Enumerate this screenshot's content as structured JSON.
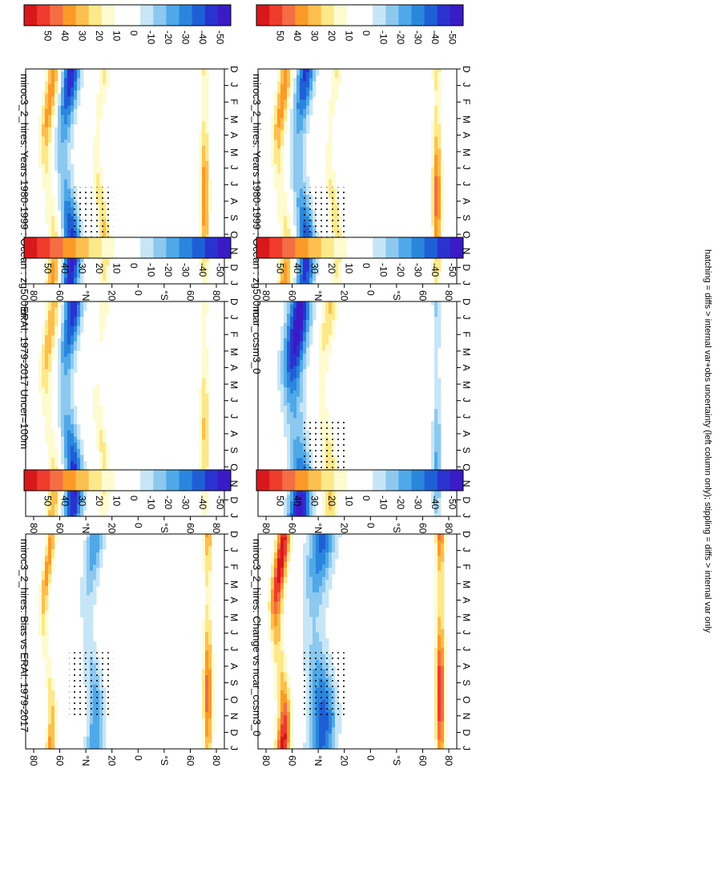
{
  "figure": {
    "footer": "hatching = diffs > internal var+obs uncertainty (left column only); stippling = diffs > internal var only"
  },
  "colorbar": {
    "labels": [
      "50",
      "40",
      "30",
      "20",
      "10",
      "0",
      "-10",
      "-20",
      "-30",
      "-40",
      "-50"
    ],
    "colors": [
      "#d7191c",
      "#ef3b2c",
      "#f46d43",
      "#fb9a29",
      "#fdbf4f",
      "#fde88a",
      "#fffbd0",
      "#ffffff",
      "#ffffff",
      "#c6e6f7",
      "#8dc8ef",
      "#4fa8e8",
      "#2a86dd",
      "#1f5fd6",
      "#2a32d0",
      "#3a1bc6"
    ]
  },
  "panel_common": {
    "lat_ticks": [
      "80",
      "60",
      "°N",
      "20",
      "0",
      "°S",
      "60",
      "80"
    ],
    "month_ticks": [
      "D",
      "J",
      "F",
      "M",
      "A",
      "M",
      "J",
      "J",
      "A",
      "S",
      "O",
      "N",
      "D",
      "J"
    ]
  },
  "chart_data": [
    {
      "type": "heatmap",
      "title": "miroc3_2_hires: Years 1980-1999 : Ocean : zg500 m",
      "x": [
        "D",
        "J",
        "F",
        "M",
        "A",
        "M",
        "J",
        "J",
        "A",
        "S",
        "O",
        "N",
        "D",
        "J"
      ],
      "y": [
        "80",
        "60",
        "°N",
        "20",
        "0",
        "°S",
        "60",
        "80"
      ],
      "zrange": [
        -50,
        50
      ],
      "features": [
        {
          "lat": 68,
          "amp": 30,
          "width": 6,
          "months": "D-J, Nov"
        },
        {
          "lat": 52,
          "amp": -45,
          "width": 8
        },
        {
          "lat": 22,
          "amp": 20,
          "width": 5
        },
        {
          "lat": -72,
          "amp": 30,
          "width": 4
        }
      ]
    },
    {
      "type": "heatmap",
      "title": "miroc3_2_hires: Years 1980-1999 : Ocean : zg500 m",
      "x": [
        "D",
        "J",
        "F",
        "M",
        "A",
        "M",
        "J",
        "J",
        "A",
        "S",
        "O",
        "N",
        "D",
        "J"
      ],
      "y": [
        "80",
        "60",
        "°N",
        "20",
        "0",
        "°S",
        "60",
        "80"
      ],
      "zrange": [
        -50,
        50
      ],
      "features": [
        {
          "lat": 68,
          "amp": 30,
          "width": 6
        },
        {
          "lat": 50,
          "amp": -40,
          "width": 8
        },
        {
          "lat": 22,
          "amp": 18,
          "width": 5
        },
        {
          "lat": -72,
          "amp": 35,
          "width": 4
        }
      ]
    },
    {
      "type": "heatmap",
      "title": "ERAI: 1979-2017 Uncer=100m",
      "x": [
        "D",
        "J",
        "F",
        "M",
        "A",
        "M",
        "J",
        "J",
        "A",
        "S",
        "O",
        "N",
        "D",
        "J"
      ],
      "y": [
        "80",
        "60",
        "°N",
        "20",
        "0",
        "°S",
        "60",
        "80"
      ],
      "zrange": [
        -50,
        50
      ],
      "features": [
        {
          "lat": 68,
          "amp": 25,
          "width": 6
        },
        {
          "lat": 50,
          "amp": -45,
          "width": 8
        },
        {
          "lat": 22,
          "amp": 15,
          "width": 5
        },
        {
          "lat": -72,
          "amp": 20,
          "width": 4
        }
      ]
    },
    {
      "type": "heatmap",
      "title": "ncar_ccsm3_0",
      "x": [
        "D",
        "J",
        "F",
        "M",
        "A",
        "M",
        "J",
        "J",
        "A",
        "S",
        "O",
        "N",
        "D",
        "J"
      ],
      "y": [
        "80",
        "60",
        "°N",
        "20",
        "0",
        "°S",
        "60",
        "80"
      ],
      "zrange": [
        -50,
        50
      ],
      "features": [
        {
          "lat": 55,
          "amp": -50,
          "width": 10
        },
        {
          "lat": 28,
          "amp": 20,
          "width": 7
        },
        {
          "lat": -72,
          "amp": -20,
          "width": 4
        }
      ]
    },
    {
      "type": "heatmap",
      "title": "miroc3_2_hires: Bias vs ERAI: 1979-2017",
      "x": [
        "D",
        "J",
        "F",
        "M",
        "A",
        "M",
        "J",
        "J",
        "A",
        "S",
        "O",
        "N",
        "D",
        "J"
      ],
      "y": [
        "80",
        "60",
        "°N",
        "20",
        "0",
        "°S",
        "60",
        "80"
      ],
      "zrange": [
        -50,
        50
      ],
      "features": [
        {
          "lat": 70,
          "amp": 30,
          "width": 4
        },
        {
          "lat": 30,
          "amp": -25,
          "width": 8
        },
        {
          "lat": -75,
          "amp": 35,
          "width": 4
        }
      ]
    },
    {
      "type": "heatmap",
      "title": "miroc3_2_hires: Change vs ncar_ccsm3_0",
      "x": [
        "D",
        "J",
        "F",
        "M",
        "A",
        "M",
        "J",
        "J",
        "A",
        "S",
        "O",
        "N",
        "D",
        "J"
      ],
      "y": [
        "80",
        "60",
        "°N",
        "20",
        "0",
        "°S",
        "60",
        "80"
      ],
      "zrange": [
        -50,
        50
      ],
      "features": [
        {
          "lat": 70,
          "amp": 50,
          "width": 6
        },
        {
          "lat": 35,
          "amp": -35,
          "width": 12
        },
        {
          "lat": -75,
          "amp": 45,
          "width": 4
        }
      ]
    }
  ]
}
